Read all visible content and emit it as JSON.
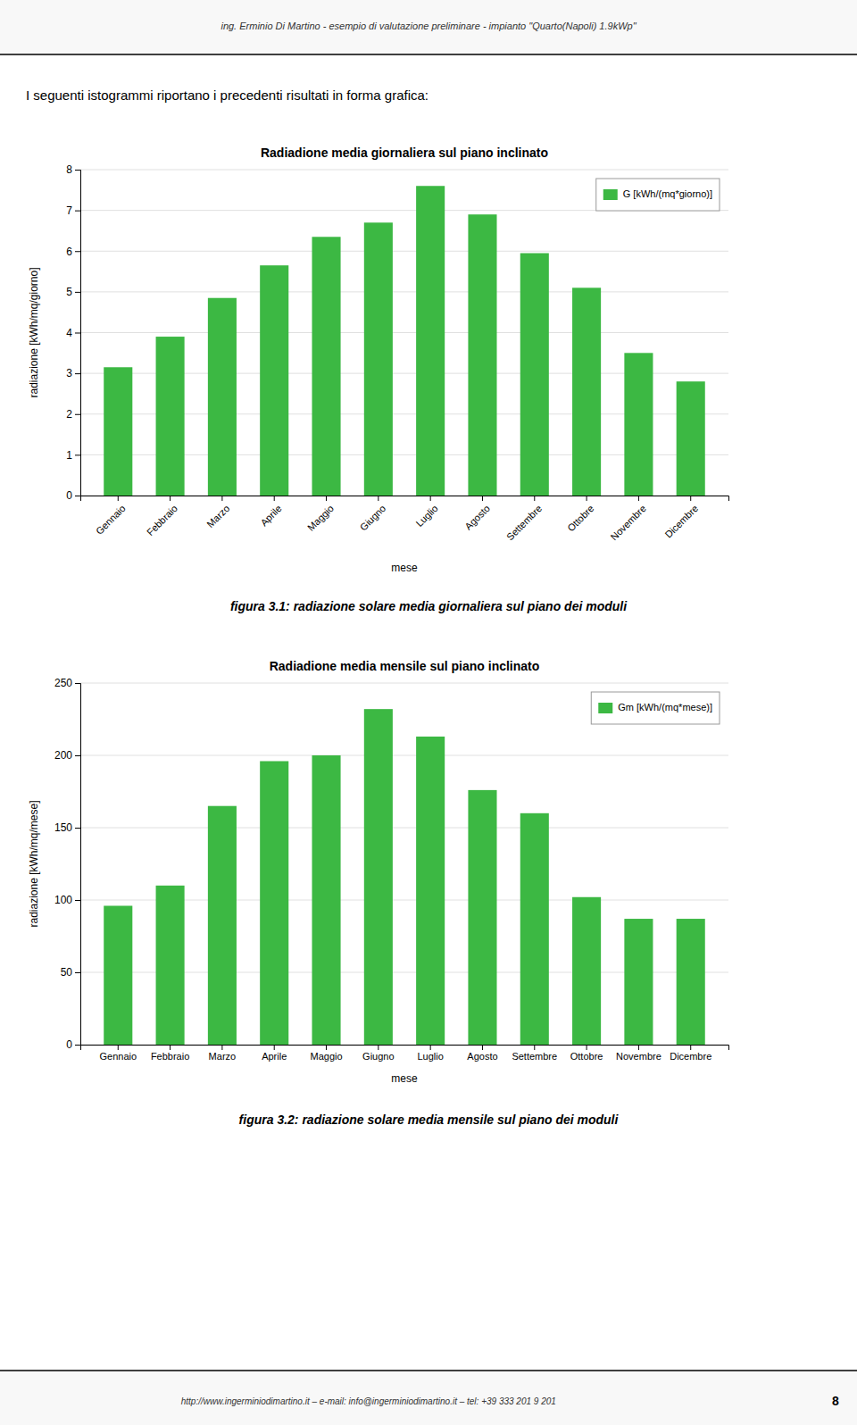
{
  "header": "ing. Erminio Di Martino  -  esempio di valutazione preliminare  -  impianto \"Quarto(Napoli) 1.9kWp\"",
  "intro": "I seguenti istogrammi riportano i precedenti risultati in forma grafica:",
  "footer": "http://www.ingerminiodimartino.it  –  e-mail: info@ingerminiodimartino.it  –  tel: +39 333 201 9 201",
  "page_number": "8",
  "chart_data": [
    {
      "type": "bar",
      "title": "Radiadione media giornaliera sul piano inclinato",
      "xlabel": "mese",
      "ylabel": "radiazione [kWh/mq/giorno]",
      "categories": [
        "Gennaio",
        "Febbraio",
        "Marzo",
        "Aprile",
        "Maggio",
        "Giugno",
        "Luglio",
        "Agosto",
        "Settembre",
        "Ottobre",
        "Novembre",
        "Dicembre"
      ],
      "series": [
        {
          "name": "G [kWh/(mq*giorno)]",
          "color": "#3cb843",
          "values": [
            3.15,
            3.9,
            4.85,
            5.65,
            6.35,
            6.7,
            7.6,
            6.9,
            5.95,
            5.1,
            3.5,
            2.8
          ]
        }
      ],
      "ylim": [
        0,
        8
      ],
      "yticks": [
        0,
        1,
        2,
        3,
        4,
        5,
        6,
        7,
        8
      ],
      "grid": true,
      "legend": "upper right",
      "annotations": [
        "figura 3.1: radiazione solare media giornaliera sul piano dei moduli"
      ]
    },
    {
      "type": "bar",
      "title": "Radiadione media mensile sul piano inclinato",
      "xlabel": "mese",
      "ylabel": "radiazione [kWh/mq/mese]",
      "categories": [
        "Gennaio",
        "Febbraio",
        "Marzo",
        "Aprile",
        "Maggio",
        "Giugno",
        "Luglio",
        "Agosto",
        "Settembre",
        "Ottobre",
        "Novembre",
        "Dicembre"
      ],
      "series": [
        {
          "name": "Gm [kWh/(mq*mese)]",
          "color": "#3cb843",
          "values": [
            96,
            110,
            165,
            196,
            200,
            232,
            213,
            176,
            160,
            102,
            87,
            87
          ]
        }
      ],
      "ylim": [
        0,
        250
      ],
      "yticks": [
        0,
        50,
        100,
        150,
        200,
        250
      ],
      "grid": true,
      "legend": "upper right",
      "annotations": [
        "figura 3.2: radiazione solare media mensile sul piano dei moduli"
      ]
    }
  ]
}
